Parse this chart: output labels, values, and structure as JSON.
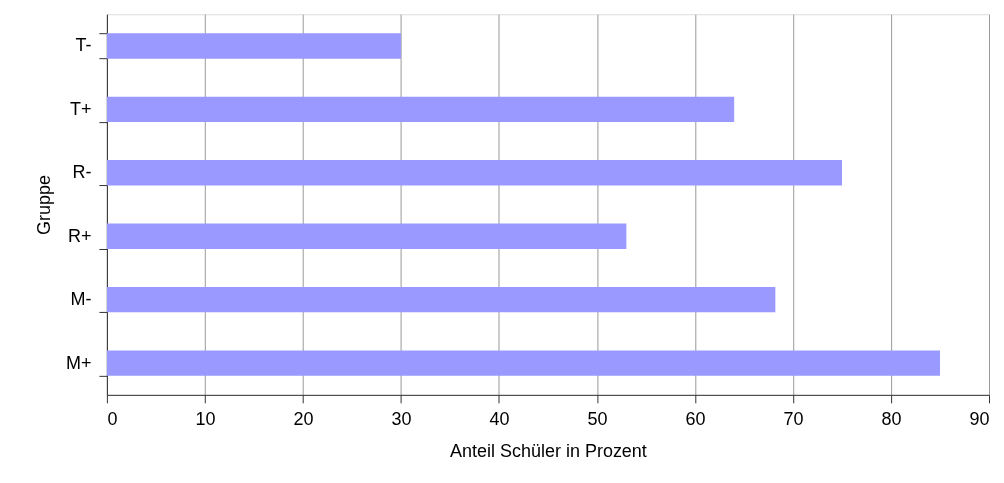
{
  "chart_data": {
    "type": "bar",
    "orientation": "horizontal",
    "xlabel": "Anteil Schüler in Prozent",
    "ylabel": "Gruppe",
    "categories": [
      "T-",
      "T+",
      "R-",
      "R+",
      "M-",
      "M+"
    ],
    "values": [
      30,
      64,
      75,
      53,
      68.2,
      85
    ],
    "color": "#9999ff",
    "xlim": [
      0,
      90
    ],
    "xticks": [
      0,
      10,
      20,
      30,
      40,
      50,
      60,
      70,
      80,
      90
    ],
    "grid": "x"
  }
}
